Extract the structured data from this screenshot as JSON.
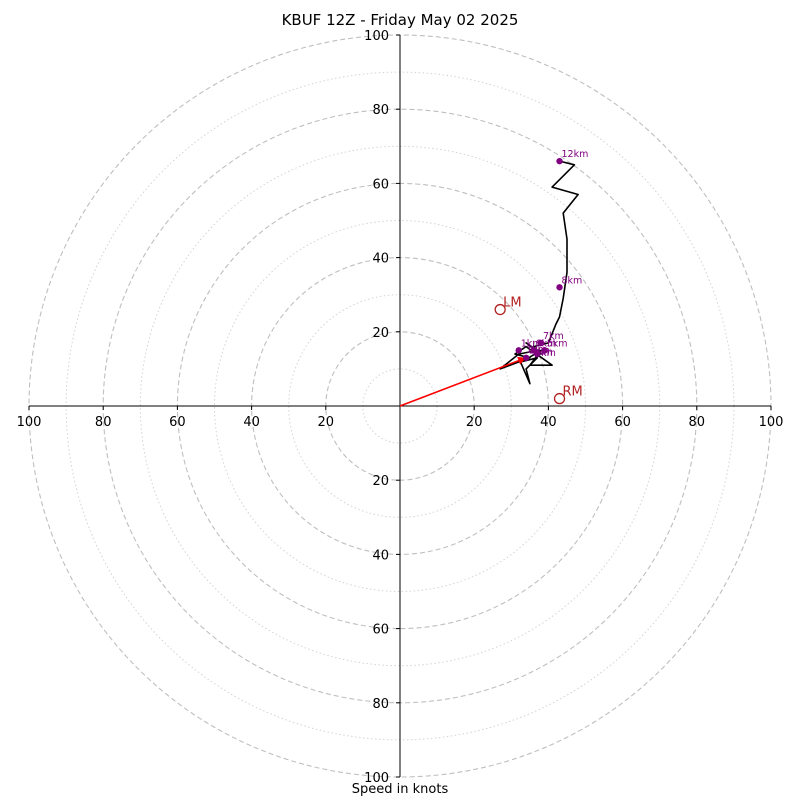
{
  "title": "KBUF 12Z - Friday May 02 2025",
  "xlabel": "Speed in knots",
  "chart_data": {
    "type": "scatter",
    "title": "KBUF 12Z - Friday May 02 2025",
    "xlabel": "Speed in knots",
    "xlim": [
      -100,
      100
    ],
    "ylim": [
      -100,
      100
    ],
    "rings": {
      "dashed": [
        20,
        40,
        60,
        80,
        100
      ],
      "dotted": [
        10,
        30,
        50,
        70,
        90
      ]
    },
    "x_tick_labels": [
      "100",
      "80",
      "60",
      "40",
      "20",
      "20",
      "40",
      "60",
      "80",
      "100"
    ],
    "y_tick_labels": [
      "100",
      "80",
      "60",
      "40",
      "20",
      "20",
      "40",
      "60",
      "80",
      "100"
    ],
    "x_ticks": [
      -100,
      -80,
      -60,
      -40,
      -20,
      20,
      40,
      60,
      80,
      100
    ],
    "y_ticks": [
      100,
      80,
      60,
      40,
      20,
      -20,
      -40,
      -60,
      -80,
      -100
    ],
    "wind_profile": {
      "color": "#000000",
      "u": [
        32,
        35,
        34,
        37,
        33,
        38,
        35,
        41,
        34,
        31,
        35,
        27,
        32,
        37,
        34,
        38,
        36,
        40,
        42,
        43,
        44,
        45,
        45,
        44,
        48,
        41,
        47,
        43
      ],
      "v": [
        13,
        6,
        10,
        13,
        12,
        15,
        11,
        11,
        16,
        14,
        13,
        10,
        14,
        15,
        17,
        14,
        16,
        17,
        22,
        24,
        29,
        36,
        45,
        52,
        57,
        59,
        65,
        66
      ]
    },
    "height_markers": {
      "color": "#800080",
      "points": [
        {
          "label": "1km",
          "u": 32,
          "v": 15
        },
        {
          "label": "",
          "u": 34,
          "v": 13
        },
        {
          "label": "",
          "u": 37,
          "v": 14
        },
        {
          "label": "5km",
          "u": 39,
          "v": 15
        },
        {
          "label": "6km",
          "u": 36,
          "v": 15
        },
        {
          "label": "7km",
          "u": 38,
          "v": 17
        },
        {
          "label": "8km",
          "u": 43,
          "v": 32
        },
        {
          "label": "12km",
          "u": 43,
          "v": 66
        }
      ],
      "overlap_labels": [
        "1km",
        "2km",
        "3km",
        "4km"
      ]
    },
    "storm_motion": {
      "color": "#b22222",
      "points": [
        {
          "label": "LM",
          "u": 27,
          "v": 26
        },
        {
          "label": "RM",
          "u": 43,
          "v": 2
        }
      ]
    },
    "mean_wind_vector": {
      "color": "#ff0000",
      "u": 34,
      "v": 13
    }
  }
}
